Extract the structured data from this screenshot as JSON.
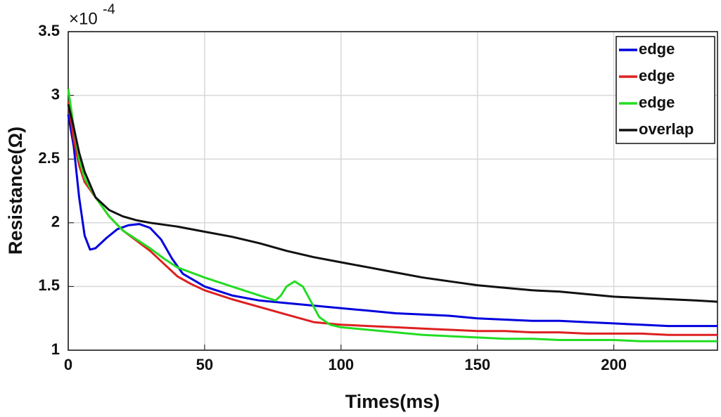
{
  "chart_data": {
    "type": "line",
    "xlabel": "Times(ms)",
    "ylabel": "Resistance(Ω)",
    "y_multiplier": {
      "base": "×10",
      "exponent": "-4"
    },
    "xlim": [
      0,
      238
    ],
    "ylim": [
      1,
      3.5
    ],
    "xticks": [
      0,
      50,
      100,
      150,
      200
    ],
    "yticks": [
      1,
      1.5,
      2,
      2.5,
      3,
      3.5
    ],
    "grid": true,
    "legend": "upper right",
    "series": [
      {
        "name": "edge",
        "color": "#0000dd",
        "x": [
          0,
          2,
          4,
          6,
          8,
          10,
          14,
          18,
          22,
          26,
          30,
          34,
          38,
          42,
          46,
          50,
          60,
          70,
          80,
          90,
          100,
          110,
          120,
          130,
          140,
          150,
          160,
          170,
          180,
          190,
          200,
          210,
          220,
          230,
          238
        ],
        "values": [
          2.85,
          2.6,
          2.2,
          1.9,
          1.79,
          1.8,
          1.88,
          1.95,
          1.98,
          1.99,
          1.96,
          1.87,
          1.72,
          1.6,
          1.55,
          1.5,
          1.43,
          1.39,
          1.37,
          1.35,
          1.33,
          1.31,
          1.29,
          1.28,
          1.27,
          1.25,
          1.24,
          1.23,
          1.23,
          1.22,
          1.21,
          1.2,
          1.19,
          1.19,
          1.19
        ]
      },
      {
        "name": "edge",
        "color": "#dd2020",
        "x": [
          0,
          2,
          4,
          6,
          10,
          15,
          20,
          25,
          30,
          35,
          40,
          45,
          50,
          60,
          70,
          80,
          90,
          100,
          110,
          120,
          130,
          140,
          150,
          160,
          170,
          180,
          190,
          200,
          210,
          220,
          230,
          238
        ],
        "values": [
          2.95,
          2.65,
          2.45,
          2.32,
          2.2,
          2.05,
          1.94,
          1.86,
          1.78,
          1.68,
          1.58,
          1.52,
          1.47,
          1.4,
          1.34,
          1.28,
          1.22,
          1.2,
          1.19,
          1.18,
          1.17,
          1.16,
          1.15,
          1.15,
          1.14,
          1.14,
          1.13,
          1.13,
          1.13,
          1.12,
          1.12,
          1.12
        ]
      },
      {
        "name": "edge",
        "color": "#22dd22",
        "x": [
          0,
          2,
          4,
          6,
          10,
          15,
          20,
          25,
          30,
          35,
          40,
          50,
          60,
          70,
          76,
          78,
          80,
          83,
          86,
          89,
          92,
          96,
          100,
          110,
          120,
          130,
          140,
          150,
          160,
          170,
          180,
          190,
          200,
          210,
          220,
          230,
          238
        ],
        "values": [
          3.05,
          2.75,
          2.5,
          2.35,
          2.2,
          2.05,
          1.94,
          1.87,
          1.8,
          1.72,
          1.65,
          1.57,
          1.5,
          1.43,
          1.39,
          1.43,
          1.5,
          1.54,
          1.5,
          1.38,
          1.26,
          1.2,
          1.18,
          1.16,
          1.14,
          1.12,
          1.11,
          1.1,
          1.09,
          1.09,
          1.08,
          1.08,
          1.08,
          1.07,
          1.07,
          1.07,
          1.07
        ]
      },
      {
        "name": "overlap",
        "color": "#111111",
        "x": [
          0,
          2,
          4,
          6,
          10,
          15,
          20,
          25,
          30,
          40,
          50,
          60,
          70,
          80,
          90,
          100,
          110,
          120,
          130,
          140,
          150,
          160,
          170,
          180,
          190,
          200,
          210,
          220,
          230,
          238
        ],
        "values": [
          2.93,
          2.75,
          2.55,
          2.4,
          2.2,
          2.1,
          2.05,
          2.02,
          2.0,
          1.97,
          1.93,
          1.89,
          1.84,
          1.78,
          1.73,
          1.69,
          1.65,
          1.61,
          1.57,
          1.54,
          1.51,
          1.49,
          1.47,
          1.46,
          1.44,
          1.42,
          1.41,
          1.4,
          1.39,
          1.38
        ]
      }
    ]
  }
}
